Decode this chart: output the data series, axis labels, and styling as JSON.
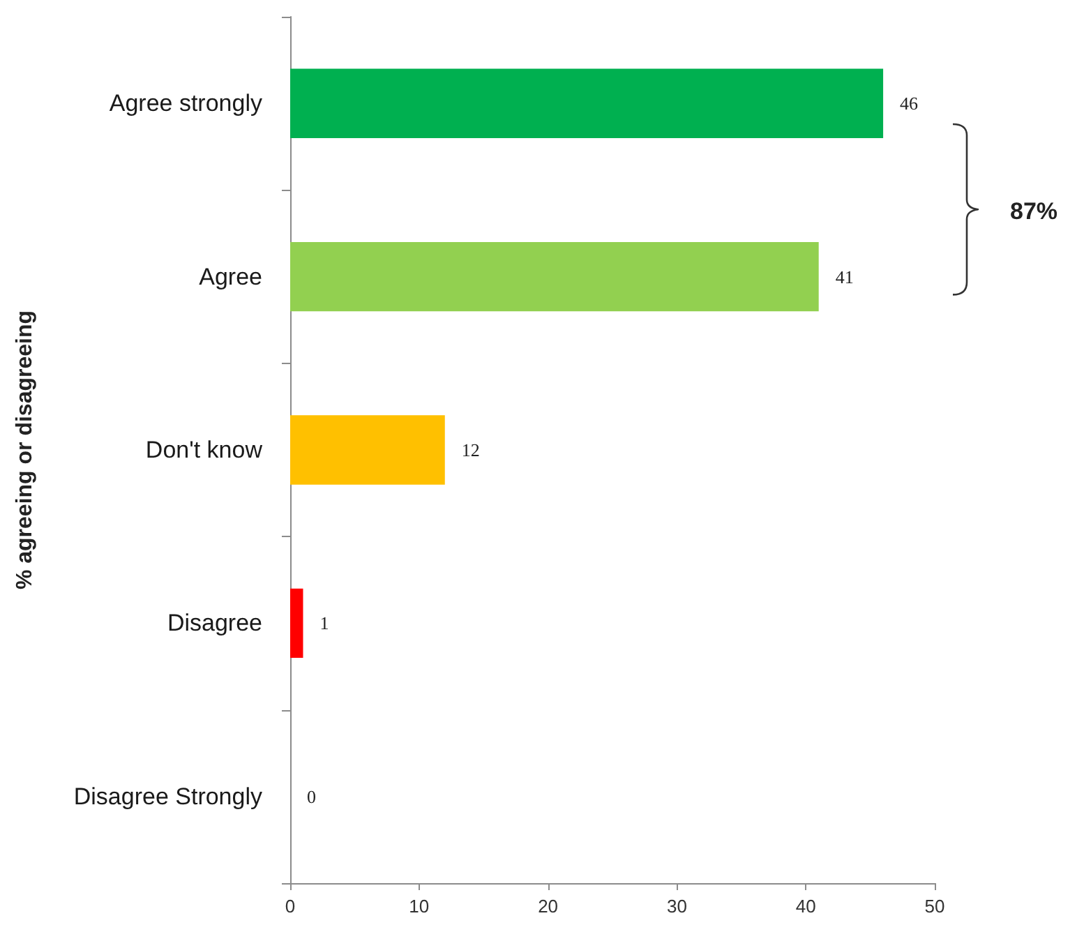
{
  "chart_data": {
    "type": "bar",
    "orientation": "horizontal",
    "ylabel": "% agreeing or disagreeing",
    "categories": [
      "Agree strongly",
      "Agree",
      "Don't know",
      "Disagree",
      "Disagree Strongly"
    ],
    "values": [
      46,
      41,
      12,
      1,
      0
    ],
    "colors": [
      "#00b050",
      "#92d050",
      "#ffc000",
      "#ff0000",
      "#c00000"
    ],
    "xlim": [
      0,
      50
    ],
    "xticks": [
      0,
      10,
      20,
      30,
      40,
      50
    ],
    "data_labels": true,
    "annotations": [
      "87%"
    ]
  }
}
